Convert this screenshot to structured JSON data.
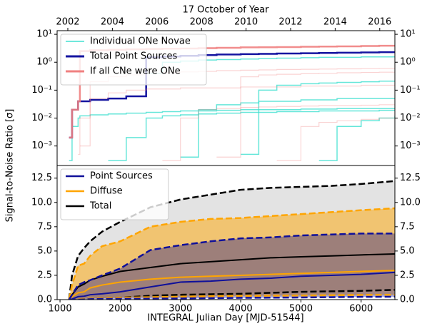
{
  "chart_data": [
    {
      "type": "line",
      "steps": true,
      "ylog": true,
      "x2label": "17 October of Year",
      "ylabel": "Signal-to-Noise Ratio [σ]",
      "legend": "upper-left",
      "xlim": [
        952,
        6560
      ],
      "x2lim": [
        2001.52,
        2016.68
      ],
      "x2ticks": [
        2002,
        2004,
        2006,
        2008,
        2010,
        2012,
        2014,
        2016
      ],
      "ylim": [
        0.0002,
        13.5
      ],
      "yticks": [
        {
          "value": 0.001,
          "label": "10⁻³"
        },
        {
          "value": 0.01,
          "label": "10⁻²"
        },
        {
          "value": 0.1,
          "label": "10⁻¹"
        },
        {
          "value": 1,
          "label": "10⁰"
        },
        {
          "value": 10,
          "label": "10¹"
        }
      ],
      "x": [
        952,
        1150,
        1200,
        1300,
        1330,
        1500,
        1800,
        2100,
        2430,
        2700,
        3000,
        3300,
        3600,
        4000,
        4300,
        4600,
        5000,
        5300,
        5600,
        6000,
        6300,
        6560
      ],
      "series": [
        {
          "name": "Individual ONe Novae",
          "color": "#40e0d0",
          "width": 1.5,
          "opacity": 0.8,
          "values": [
            null,
            0.0003,
            0.005,
            0.01,
            0.012,
            0.013,
            0.014,
            0.015,
            0.016,
            0.017,
            0.018,
            0.018,
            0.019,
            0.02,
            0.02,
            0.02,
            0.021,
            0.021,
            0.022,
            0.022,
            0.022,
            0.023
          ]
        },
        {
          "name": "Total Point Sources",
          "color": "#1414a0",
          "width": 2.5,
          "opacity": 1,
          "values": [
            null,
            0.002,
            0.02,
            0.04,
            0.04,
            0.045,
            0.05,
            0.06,
            1.5,
            1.6,
            1.7,
            1.8,
            1.9,
            1.95,
            2.0,
            2.05,
            2.1,
            2.15,
            2.2,
            2.25,
            2.3,
            2.3
          ]
        },
        {
          "name": "If all CNe were ONe",
          "color": "#f08080",
          "width": 2.5,
          "opacity": 0.9,
          "values": [
            null,
            0.002,
            0.02,
            0.04,
            2.5,
            2.7,
            2.8,
            2.9,
            3.0,
            3.05,
            3.1,
            3.2,
            3.3,
            3.4,
            3.45,
            3.5,
            3.6,
            3.65,
            3.7,
            3.8,
            3.9,
            4.0
          ]
        },
        {
          "color": "#40e0d0",
          "width": 1.5,
          "opacity": 0.8,
          "values": [
            null,
            null,
            null,
            null,
            null,
            null,
            null,
            null,
            0.4,
            1.0,
            1.1,
            1.2,
            1.25,
            1.3,
            1.35,
            1.4,
            1.45,
            1.5,
            1.5,
            1.55,
            1.55,
            1.6
          ]
        },
        {
          "color": "#40e0d0",
          "width": 1.5,
          "opacity": 0.8,
          "values": [
            null,
            null,
            null,
            null,
            null,
            null,
            null,
            null,
            null,
            null,
            0.0004,
            0.02,
            0.03,
            0.035,
            0.04,
            0.04,
            0.045,
            0.045,
            0.05,
            0.05,
            0.05,
            0.05
          ]
        },
        {
          "color": "#40e0d0",
          "width": 1.5,
          "opacity": 0.8,
          "values": [
            null,
            null,
            null,
            null,
            null,
            null,
            null,
            null,
            null,
            null,
            null,
            null,
            null,
            0.0005,
            0.1,
            0.15,
            0.17,
            0.18,
            0.19,
            0.2,
            0.21,
            0.22
          ]
        },
        {
          "color": "#40e0d0",
          "width": 1.5,
          "opacity": 0.8,
          "values": [
            null,
            null,
            null,
            null,
            null,
            null,
            null,
            null,
            null,
            null,
            null,
            null,
            null,
            null,
            null,
            null,
            null,
            0.0003,
            0.005,
            0.008,
            0.01,
            0.012
          ]
        },
        {
          "color": "#40e0d0",
          "width": 1.5,
          "opacity": 0.8,
          "values": [
            null,
            null,
            null,
            null,
            null,
            null,
            0.0003,
            0.002,
            0.01,
            0.012,
            0.013,
            0.014,
            0.015,
            0.016,
            0.016,
            0.017,
            0.017,
            0.018,
            0.018,
            0.018,
            0.019,
            0.019
          ]
        },
        {
          "color": "#f08080",
          "width": 1.2,
          "opacity": 0.35,
          "values": [
            null,
            null,
            null,
            null,
            0.001,
            0.2,
            0.3,
            0.35,
            0.4,
            0.42,
            0.45,
            0.47,
            0.5,
            0.52,
            0.53,
            0.55,
            0.56,
            0.57,
            0.58,
            0.59,
            0.6,
            0.6
          ]
        },
        {
          "color": "#f08080",
          "width": 1.2,
          "opacity": 0.35,
          "values": [
            null,
            null,
            null,
            0.0005,
            0.01,
            0.05,
            0.08,
            0.1,
            0.11,
            0.11,
            0.12,
            0.12,
            0.12,
            0.13,
            0.13,
            0.13,
            0.14,
            0.14,
            0.14,
            0.15,
            0.15,
            0.15
          ]
        },
        {
          "color": "#f08080",
          "width": 1.2,
          "opacity": 0.35,
          "values": [
            null,
            null,
            null,
            null,
            null,
            null,
            null,
            null,
            null,
            0.0003,
            0.01,
            0.02,
            0.022,
            0.024,
            0.025,
            0.026,
            0.027,
            0.028,
            0.028,
            0.029,
            0.03,
            0.03
          ]
        },
        {
          "color": "#f08080",
          "width": 1.2,
          "opacity": 0.35,
          "values": [
            null,
            null,
            null,
            null,
            null,
            null,
            null,
            null,
            null,
            null,
            null,
            null,
            0.0004,
            0.3,
            0.35,
            0.37,
            0.39,
            0.4,
            0.42,
            0.43,
            0.44,
            0.45
          ]
        },
        {
          "color": "#f08080",
          "width": 1.2,
          "opacity": 0.35,
          "values": [
            null,
            null,
            null,
            null,
            null,
            null,
            null,
            null,
            null,
            null,
            null,
            null,
            null,
            null,
            null,
            0.0003,
            0.005,
            0.007,
            0.008,
            0.009,
            0.01,
            0.01
          ]
        }
      ]
    },
    {
      "type": "band",
      "xlabel": "INTEGRAL Julian Day [MJD-51544]",
      "legend": "upper-left",
      "xlim": [
        952,
        6560
      ],
      "xticks": [
        1000,
        2000,
        3000,
        4000,
        5000,
        6000
      ],
      "ylim": [
        0,
        13.8
      ],
      "yticks": [
        {
          "value": 0,
          "label": "0.0"
        },
        2.5,
        {
          "value": 5,
          "label": "5.0"
        },
        7.5,
        {
          "value": 10,
          "label": "10.0"
        },
        12.5
      ],
      "x": [
        1150,
        1200,
        1300,
        1400,
        1500,
        1700,
        2000,
        2500,
        3000,
        3500,
        4000,
        4500,
        5000,
        5500,
        6000,
        6560
      ],
      "series": [
        {
          "name": "Point Sources",
          "color": "#10109a",
          "fill": "#00008b",
          "fill_opacity": 0.35,
          "values": [
            0,
            0.05,
            0.3,
            0.35,
            0.5,
            0.6,
            0.8,
            1.3,
            1.8,
            1.9,
            2.1,
            2.2,
            2.4,
            2.5,
            2.6,
            2.8
          ],
          "lower": [
            0,
            0,
            0,
            0.02,
            0.05,
            0.07,
            0.08,
            0.1,
            0.12,
            0.15,
            0.18,
            0.2,
            0.22,
            0.25,
            0.28,
            0.3
          ],
          "upper": [
            0,
            0.5,
            1.5,
            1.8,
            2.0,
            2.5,
            3.2,
            5.1,
            5.6,
            6.0,
            6.3,
            6.4,
            6.6,
            6.7,
            6.8,
            6.8
          ]
        },
        {
          "name": "Diffuse",
          "color": "#ffa500",
          "fill": "#ffa500",
          "fill_opacity": 0.5,
          "values": [
            0,
            0.3,
            0.7,
            0.8,
            1.2,
            1.5,
            1.8,
            2.1,
            2.3,
            2.4,
            2.5,
            2.6,
            2.7,
            2.8,
            2.9,
            3.0
          ],
          "lower": [
            0,
            0,
            0.05,
            0.08,
            0.1,
            0.15,
            0.2,
            0.25,
            0.3,
            0.35,
            0.38,
            0.4,
            0.42,
            0.45,
            0.48,
            0.5
          ],
          "upper": [
            0,
            1.5,
            3.5,
            3.7,
            4.5,
            5.5,
            6.0,
            7.5,
            8.0,
            8.3,
            8.4,
            8.6,
            8.8,
            9.0,
            9.2,
            9.4
          ]
        },
        {
          "name": "Total",
          "color": "#000000",
          "fill": "#c8c8c8",
          "fill_opacity": 0.5,
          "values": [
            0,
            0.5,
            1.3,
            1.6,
            2.0,
            2.4,
            2.9,
            3.3,
            3.7,
            3.9,
            4.1,
            4.3,
            4.4,
            4.5,
            4.6,
            4.7
          ],
          "lower": [
            0,
            0,
            0,
            0.05,
            0.1,
            0.15,
            0.2,
            0.4,
            0.5,
            0.55,
            0.6,
            0.7,
            0.8,
            0.85,
            0.9,
            1.0
          ],
          "upper": [
            0,
            2.5,
            4.5,
            5.3,
            6.0,
            7.0,
            8.0,
            9.5,
            10.3,
            10.8,
            11.3,
            11.5,
            11.6,
            11.7,
            11.9,
            12.2
          ]
        }
      ]
    }
  ]
}
